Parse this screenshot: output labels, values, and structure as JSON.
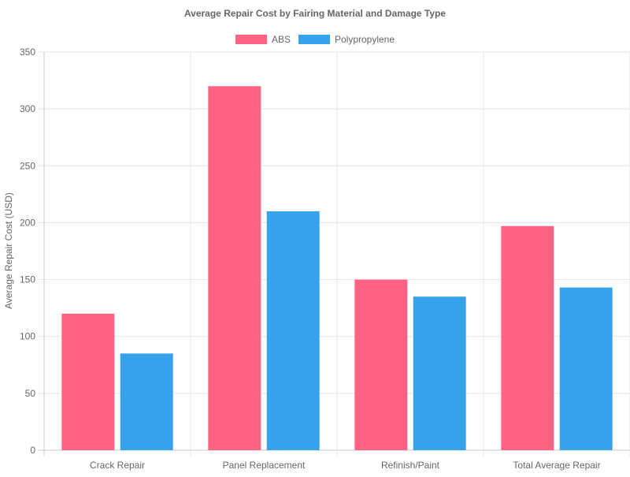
{
  "chart_data": {
    "type": "bar",
    "title": "Average Repair Cost by Fairing Material and Damage Type",
    "xlabel": "",
    "ylabel": "Average Repair Cost (USD)",
    "categories": [
      "Crack Repair",
      "Panel Replacement",
      "Refinish/Paint",
      "Total Average Repair"
    ],
    "series": [
      {
        "name": "ABS",
        "color": "#ff6384",
        "values": [
          120,
          320,
          150,
          197
        ]
      },
      {
        "name": "Polypropylene",
        "color": "#36a2eb",
        "values": [
          85,
          210,
          135,
          143
        ]
      }
    ],
    "ylim": [
      0,
      350
    ],
    "yticks": [
      0,
      50,
      100,
      150,
      200,
      250,
      300,
      350
    ],
    "grid": true,
    "legend_position": "top"
  }
}
